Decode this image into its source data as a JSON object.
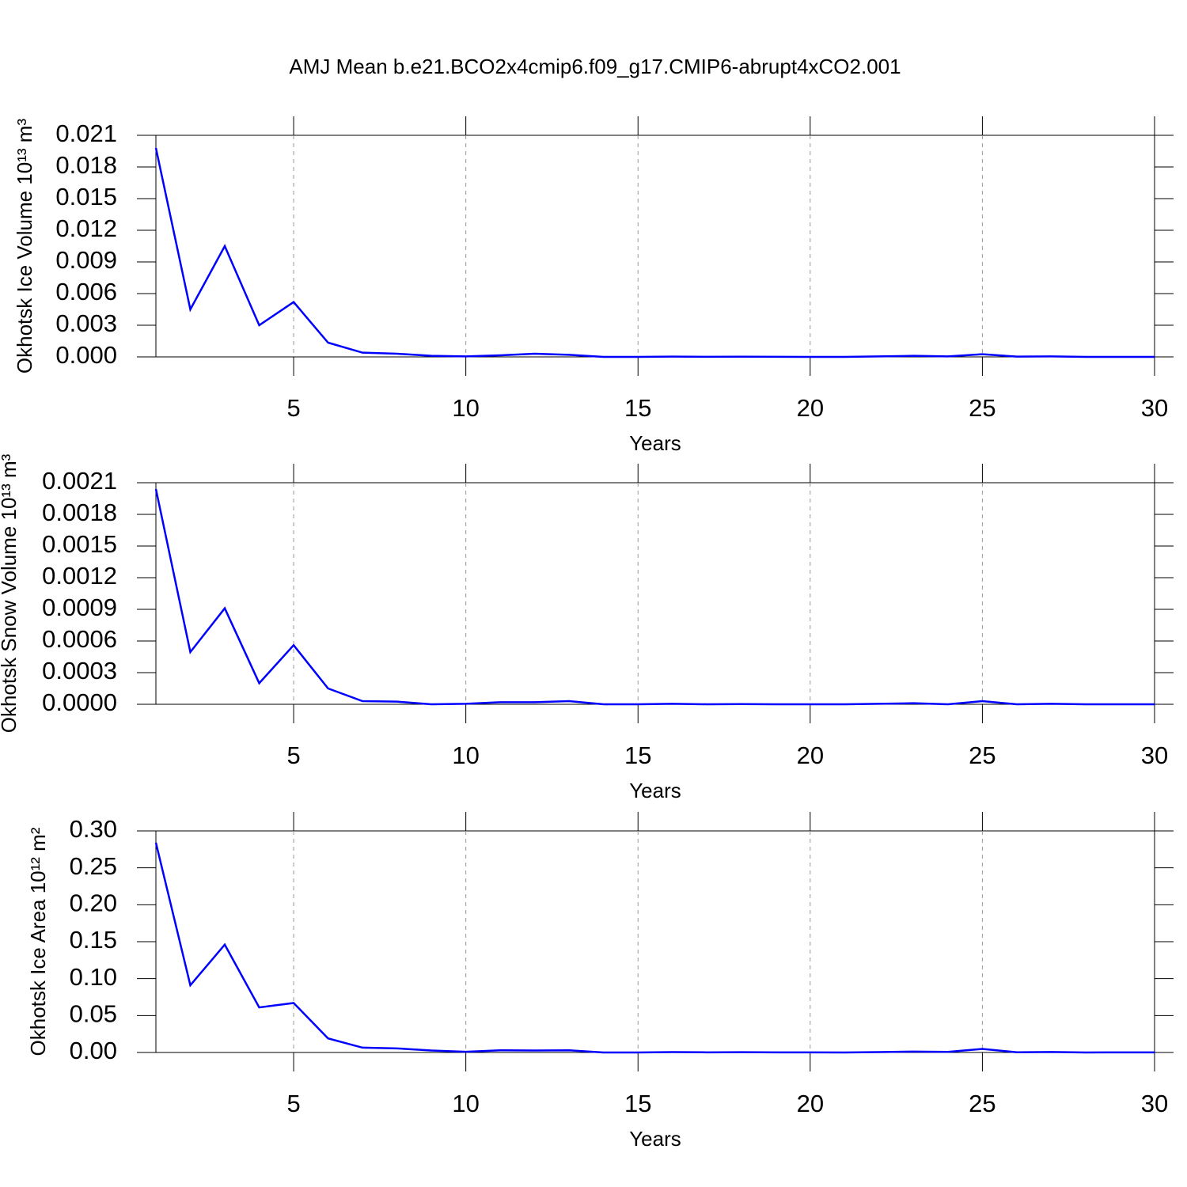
{
  "title": "AMJ Mean b.e21.BCO2x4cmip6.f09_g17.CMIP6-abrupt4xCO2.001",
  "chart_data": [
    {
      "type": "line",
      "ylabel": "Okhotsk Ice Volume 10¹³ m³",
      "xlabel": "Years",
      "x": [
        1,
        2,
        3,
        4,
        5,
        6,
        7,
        8,
        9,
        10,
        11,
        12,
        13,
        14,
        15,
        16,
        17,
        18,
        19,
        20,
        21,
        22,
        23,
        24,
        25,
        26,
        27,
        28,
        29,
        30
      ],
      "series": [
        {
          "color": "#0000ff",
          "values": [
            0.0198,
            0.0045,
            0.0105,
            0.003,
            0.0052,
            0.00135,
            0.0004,
            0.0003,
            0.0001,
            5e-05,
            0.00015,
            0.0003,
            0.0002,
            0,
            0,
            3e-05,
            1e-05,
            2e-05,
            1e-05,
            0,
            0,
            5e-05,
            0.0001,
            5e-05,
            0.00025,
            3e-05,
            5e-05,
            0,
            0,
            0
          ]
        }
      ],
      "xlim": [
        1,
        30
      ],
      "xticks": [
        5,
        10,
        15,
        20,
        25,
        30
      ],
      "ylim": [
        0,
        0.021
      ],
      "yticks": [
        {
          "value": 0,
          "label": "0.000"
        },
        0.003,
        0.006,
        0.009,
        0.012,
        0.015,
        0.018,
        0.021
      ],
      "grid": true
    },
    {
      "type": "line",
      "ylabel": "Okhotsk Snow Volume 10¹³ m³",
      "xlabel": "Years",
      "x": [
        1,
        2,
        3,
        4,
        5,
        6,
        7,
        8,
        9,
        10,
        11,
        12,
        13,
        14,
        15,
        16,
        17,
        18,
        19,
        20,
        21,
        22,
        23,
        24,
        25,
        26,
        27,
        28,
        29,
        30
      ],
      "series": [
        {
          "color": "#0000ff",
          "values": [
            0.00204,
            0.000495,
            0.00091,
            0.0002,
            0.00056,
            0.00015,
            3e-05,
            2.5e-05,
            0,
            5e-06,
            2e-05,
            2e-05,
            3e-05,
            0,
            0,
            5e-06,
            0,
            2e-06,
            0,
            0,
            0,
            5e-06,
            1e-05,
            0,
            3e-05,
            0,
            5e-06,
            0,
            0,
            0
          ]
        }
      ],
      "xlim": [
        1,
        30
      ],
      "xticks": [
        5,
        10,
        15,
        20,
        25,
        30
      ],
      "ylim": [
        0,
        0.0021
      ],
      "yticks": [
        {
          "value": 0,
          "label": "0.0000"
        },
        0.0003,
        0.0006,
        0.0009,
        0.0012,
        0.0015,
        0.0018,
        0.0021
      ],
      "grid": true
    },
    {
      "type": "line",
      "ylabel": "Okhotsk Ice Area 10¹² m²",
      "xlabel": "Years",
      "x": [
        1,
        2,
        3,
        4,
        5,
        6,
        7,
        8,
        9,
        10,
        11,
        12,
        13,
        14,
        15,
        16,
        17,
        18,
        19,
        20,
        21,
        22,
        23,
        24,
        25,
        26,
        27,
        28,
        29,
        30
      ],
      "series": [
        {
          "color": "#0000ff",
          "values": [
            0.284,
            0.091,
            0.146,
            0.061,
            0.067,
            0.019,
            0.0065,
            0.0055,
            0.0027,
            0.001,
            0.003,
            0.0027,
            0.003,
            0,
            0,
            0.0005,
            0.0002,
            0.0004,
            0.0002,
            0.0002,
            0,
            0.0006,
            0.0012,
            0.0008,
            0.0048,
            0.0003,
            0.0007,
            0,
            0.0002,
            0.0002
          ]
        }
      ],
      "xlim": [
        1,
        30
      ],
      "xticks": [
        5,
        10,
        15,
        20,
        25,
        30
      ],
      "ylim": [
        0,
        0.3
      ],
      "yticks": [
        {
          "value": 0,
          "label": "0.00"
        },
        0.05,
        {
          "value": 0.1,
          "label": "0.10"
        },
        0.15,
        {
          "value": 0.2,
          "label": "0.20"
        },
        0.25,
        {
          "value": 0.3,
          "label": "0.30"
        }
      ],
      "grid": true
    }
  ]
}
